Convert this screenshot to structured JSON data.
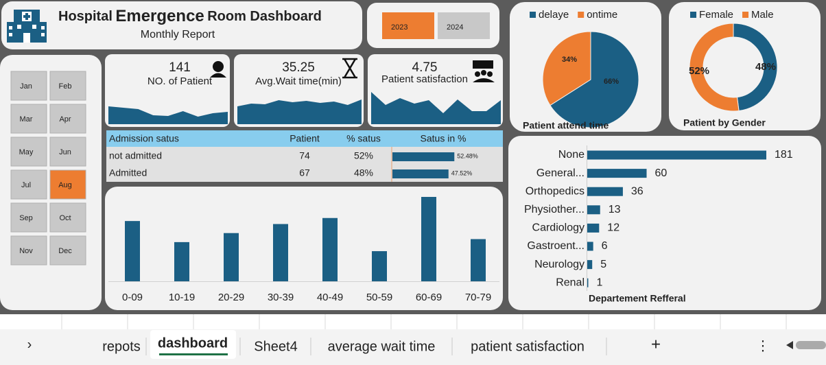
{
  "header": {
    "title_parts": [
      "Hospital",
      "Emergence",
      "Room Dashboard"
    ],
    "subtitle": "Monthly Report"
  },
  "years": {
    "options": [
      "2023",
      "2024"
    ],
    "selected": "2023"
  },
  "months": {
    "options": [
      "Jan",
      "Feb",
      "Mar",
      "Apr",
      "May",
      "Jun",
      "Jul",
      "Aug",
      "Sep",
      "Oct",
      "Nov",
      "Dec"
    ],
    "selected": "Aug"
  },
  "kpis": [
    {
      "value": 141,
      "label": "NO. of Patient",
      "trend": [
        26,
        24,
        22,
        13,
        12,
        19,
        11,
        16,
        18
      ]
    },
    {
      "value": 35.25,
      "label": "Avg.Wait time(min)",
      "trend": [
        26,
        30,
        29,
        35,
        32,
        34,
        31,
        33,
        28,
        36
      ]
    },
    {
      "value": 4.75,
      "label": "Patient satisfaction",
      "trend": [
        47,
        28,
        38,
        30,
        35,
        16,
        36,
        19,
        19,
        35
      ]
    }
  ],
  "admission_table": {
    "columns": [
      "Admission satus",
      "Patient",
      "% satus",
      "Satus in %"
    ],
    "rows": [
      {
        "status": "not admitted",
        "patient": "74",
        "percent": "52%",
        "bar": 52.48,
        "bar_label": "52.48%"
      },
      {
        "status": "Admitted",
        "patient": "67",
        "percent": "48%",
        "bar": 47.52,
        "bar_label": "47.52%"
      }
    ]
  },
  "chart_data": [
    {
      "type": "bar",
      "categories": [
        "0-09",
        "10-19",
        "20-29",
        "30-39",
        "40-49",
        "50-59",
        "60-69",
        "70-79"
      ],
      "values": [
        20,
        13,
        16,
        19,
        21,
        10,
        28,
        14
      ],
      "color": "#1b5f84"
    },
    {
      "type": "pie",
      "title": "Patient attend time",
      "categories": [
        "delaye",
        "ontime"
      ],
      "values": [
        66,
        34
      ],
      "value_labels": [
        "66%",
        "34%"
      ],
      "colors": [
        "#1b5f84",
        "#ed7d31"
      ]
    },
    {
      "type": "donut",
      "title": "Patient by Gender",
      "categories": [
        "Female",
        "Male"
      ],
      "values": [
        48,
        52
      ],
      "value_labels": [
        "48%",
        "52%"
      ],
      "colors": [
        "#1b5f84",
        "#ed7d31"
      ]
    },
    {
      "type": "hbar",
      "title": "Departement Refferal",
      "categories": [
        "None",
        "General...",
        "Orthopedics",
        "Physiother...",
        "Cardiology",
        "Gastroent...",
        "Neurology",
        "Renal"
      ],
      "values": [
        181,
        60,
        36,
        13,
        12,
        6,
        5,
        1
      ],
      "color": "#1b5f84"
    }
  ],
  "tabs": {
    "items": [
      "repots",
      "dashboard",
      "Sheet4",
      "average wait time",
      "patient satisfaction"
    ],
    "active": "dashboard"
  }
}
